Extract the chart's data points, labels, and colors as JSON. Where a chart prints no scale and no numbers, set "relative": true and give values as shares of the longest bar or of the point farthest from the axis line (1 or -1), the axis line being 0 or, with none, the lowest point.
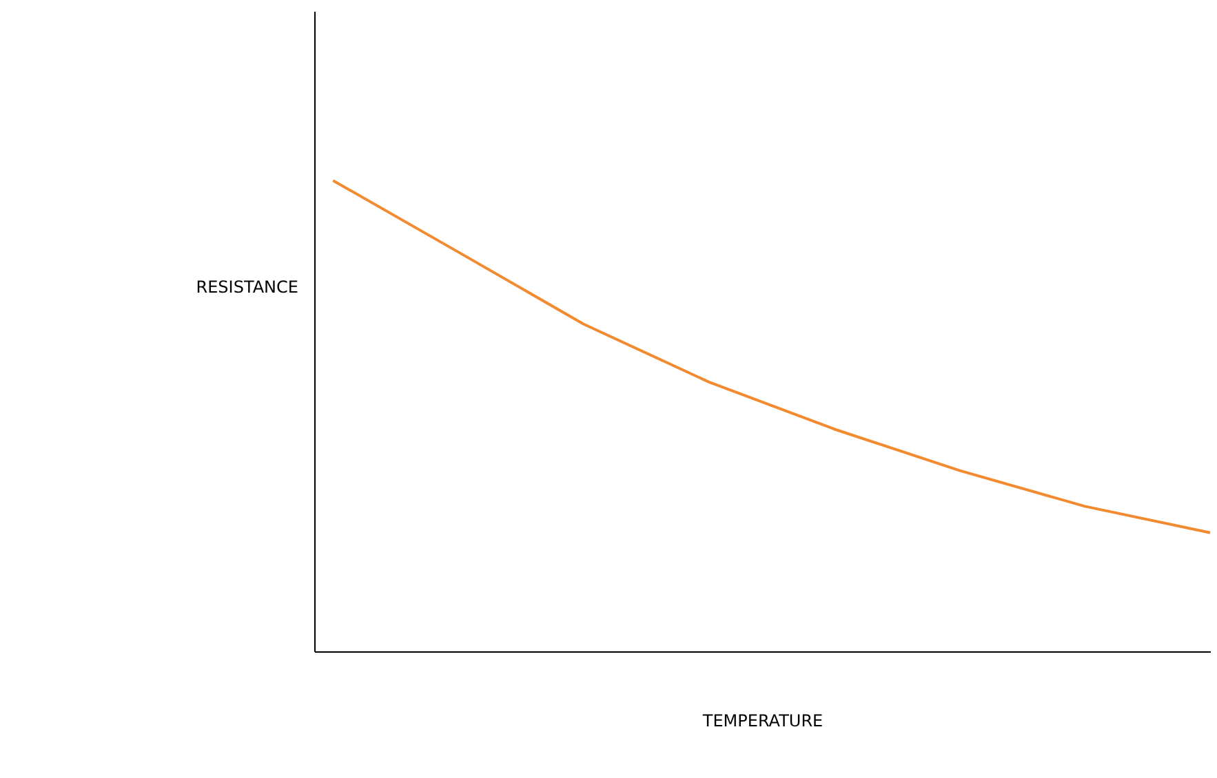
{
  "chart_data": {
    "type": "line",
    "xlabel": "TEMPERATURE",
    "ylabel": "RESISTANCE",
    "relative": true,
    "categories": [
      null,
      null,
      null,
      null,
      null,
      null,
      null,
      null
    ],
    "series": [
      {
        "color": "#f28a30",
        "values": [
          1,
          0.848,
          0.695,
          0.572,
          0.472,
          0.384,
          0.308,
          0.252
        ]
      }
    ],
    "grid": false,
    "marker": "none",
    "line_style": "solid",
    "tick_labels": false
  }
}
